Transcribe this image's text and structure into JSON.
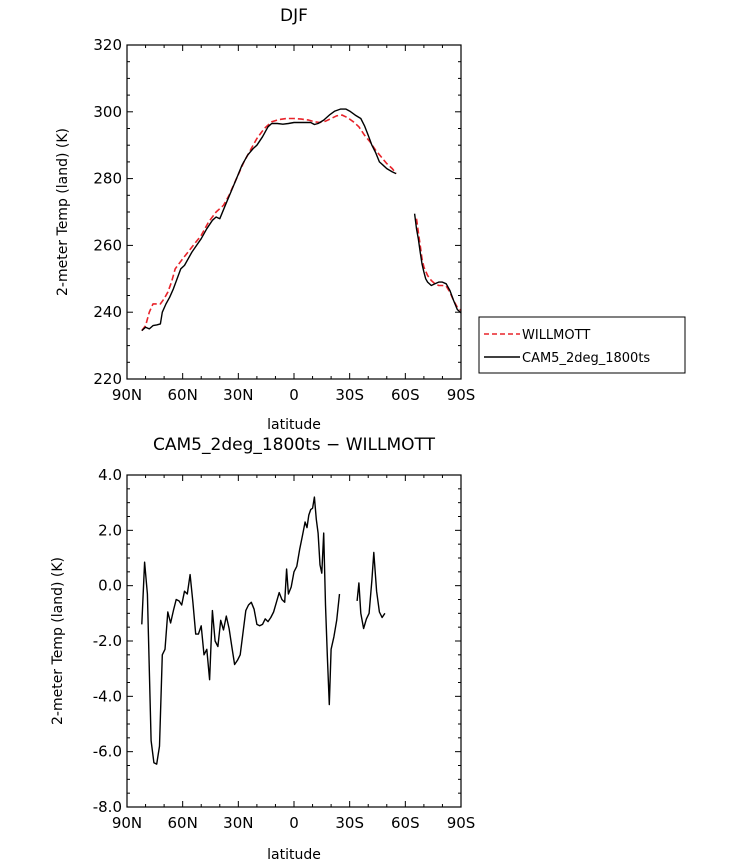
{
  "chart_data": [
    {
      "type": "line",
      "title": "DJF",
      "xlabel": "latitude",
      "ylabel": "2-meter Temp (land) (K)",
      "x_tick_labels": [
        "90N",
        "60N",
        "30N",
        "0",
        "30S",
        "60S",
        "90S"
      ],
      "x_ticks": [
        -90,
        -60,
        -30,
        0,
        30,
        60,
        90
      ],
      "xlim": [
        -90,
        90
      ],
      "y_tick_labels": [
        "220",
        "240",
        "260",
        "280",
        "300",
        "320"
      ],
      "y_ticks": [
        220,
        240,
        260,
        280,
        300,
        320
      ],
      "ylim": [
        220,
        320
      ],
      "legend": "right",
      "grid": false,
      "series": [
        {
          "name": "WILLMOTT",
          "color": "#e8232a",
          "dash": "dashed",
          "segments": [
            [
              [
                -82,
                234.5
              ],
              [
                -80,
                236
              ],
              [
                -78,
                240
              ],
              [
                -76,
                242.5
              ],
              [
                -74,
                242.5
              ],
              [
                -72,
                242.5
              ],
              [
                -70,
                244
              ],
              [
                -68,
                246
              ],
              [
                -66,
                249
              ],
              [
                -64,
                253
              ],
              [
                -60,
                256
              ],
              [
                -55,
                259.5
              ],
              [
                -50,
                263
              ],
              [
                -46,
                267
              ],
              [
                -42,
                270
              ],
              [
                -38,
                272
              ],
              [
                -35,
                275
              ],
              [
                -31,
                280
              ],
              [
                -27,
                285
              ],
              [
                -23,
                289
              ],
              [
                -20,
                292
              ],
              [
                -16,
                295
              ],
              [
                -12,
                297
              ],
              [
                -8,
                297.7
              ],
              [
                -4,
                298
              ],
              [
                0,
                298
              ],
              [
                4,
                297.8
              ],
              [
                8,
                297.5
              ],
              [
                11,
                297
              ],
              [
                14,
                296.8
              ],
              [
                17,
                297.2
              ],
              [
                20,
                298
              ],
              [
                23,
                298.8
              ],
              [
                26,
                299
              ],
              [
                29,
                298.2
              ],
              [
                32,
                297
              ],
              [
                35,
                295.5
              ],
              [
                38,
                293
              ],
              [
                41,
                291
              ],
              [
                44,
                288.5
              ],
              [
                47,
                286.5
              ],
              [
                50,
                284.5
              ],
              [
                53,
                283
              ],
              [
                55,
                281.5
              ]
            ],
            [
              [
                66,
                268
              ],
              [
                67,
                264
              ],
              [
                68,
                260
              ],
              [
                69,
                256
              ],
              [
                70,
                253.5
              ],
              [
                72,
                251
              ],
              [
                74,
                249.5
              ],
              [
                76,
                248.5
              ],
              [
                78,
                248
              ],
              [
                80,
                248
              ],
              [
                82,
                247.8
              ],
              [
                84,
                246
              ],
              [
                86,
                243.5
              ],
              [
                88,
                241.5
              ],
              [
                90,
                240.5
              ]
            ]
          ]
        },
        {
          "name": "CAM5_2deg_1800ts",
          "color": "#000000",
          "dash": "solid",
          "segments": [
            [
              [
                -82,
                234.5
              ],
              [
                -80,
                235.5
              ],
              [
                -78,
                235
              ],
              [
                -76,
                236
              ],
              [
                -74,
                236.2
              ],
              [
                -72,
                236.5
              ],
              [
                -71,
                240
              ],
              [
                -69,
                242.5
              ],
              [
                -67,
                244.5
              ],
              [
                -65,
                247
              ],
              [
                -63,
                250
              ],
              [
                -61,
                253
              ],
              [
                -59,
                254
              ],
              [
                -55,
                258
              ],
              [
                -50,
                262
              ],
              [
                -47,
                265
              ],
              [
                -44,
                267.5
              ],
              [
                -42,
                268.5
              ],
              [
                -40,
                268
              ],
              [
                -37,
                272
              ],
              [
                -34,
                276
              ],
              [
                -31,
                280
              ],
              [
                -28,
                284
              ],
              [
                -25,
                287
              ],
              [
                -22,
                289
              ],
              [
                -20,
                290
              ],
              [
                -17,
                292.5
              ],
              [
                -14,
                295.5
              ],
              [
                -12,
                296.5
              ],
              [
                -9,
                296.5
              ],
              [
                -6,
                296.3
              ],
              [
                -3,
                296.5
              ],
              [
                0,
                296.8
              ],
              [
                3,
                296.8
              ],
              [
                6,
                296.8
              ],
              [
                9,
                296.8
              ],
              [
                11,
                296.2
              ],
              [
                13,
                296.5
              ],
              [
                16,
                297.5
              ],
              [
                19,
                299
              ],
              [
                22,
                300.2
              ],
              [
                25,
                300.8
              ],
              [
                28,
                300.8
              ],
              [
                30,
                300.2
              ],
              [
                33,
                299
              ],
              [
                36,
                298
              ],
              [
                38,
                295.8
              ],
              [
                40,
                293
              ],
              [
                42,
                290
              ],
              [
                44,
                287.8
              ],
              [
                46,
                285
              ],
              [
                48,
                284
              ],
              [
                50,
                283
              ],
              [
                53,
                282
              ],
              [
                55,
                281.5
              ]
            ],
            [
              [
                65,
                269.5
              ],
              [
                66,
                265
              ],
              [
                67,
                262
              ],
              [
                68,
                258
              ],
              [
                69,
                254.5
              ],
              [
                70,
                252
              ],
              [
                71,
                250
              ],
              [
                72,
                249
              ],
              [
                74,
                248
              ],
              [
                76,
                248.5
              ],
              [
                78,
                249
              ],
              [
                80,
                249
              ],
              [
                82,
                248.5
              ],
              [
                84,
                246.5
              ],
              [
                86,
                243.5
              ],
              [
                88,
                240.8
              ],
              [
                90,
                239.8
              ]
            ]
          ]
        }
      ]
    },
    {
      "type": "line",
      "title": "CAM5_2deg_1800ts − WILLMOTT",
      "xlabel": "latitude",
      "ylabel": "2-meter Temp (land) (K)",
      "x_tick_labels": [
        "90N",
        "60N",
        "30N",
        "0",
        "30S",
        "60S",
        "90S"
      ],
      "x_ticks": [
        -90,
        -60,
        -30,
        0,
        30,
        60,
        90
      ],
      "xlim": [
        -90,
        90
      ],
      "y_tick_labels": [
        "-8.0",
        "-6.0",
        "-4.0",
        "-2.0",
        "0.0",
        "2.0",
        "4.0"
      ],
      "y_ticks": [
        -8,
        -6,
        -4,
        -2,
        0,
        2,
        4
      ],
      "ylim": [
        -8,
        4
      ],
      "grid": false,
      "series": [
        {
          "color": "#000000",
          "dash": "solid",
          "segments": [
            [
              [
                -82,
                -1.4
              ],
              [
                -80.5,
                0.85
              ],
              [
                -79,
                -0.3
              ],
              [
                -77,
                -5.6
              ],
              [
                -75.5,
                -6.4
              ],
              [
                -74,
                -6.45
              ],
              [
                -72.5,
                -5.8
              ],
              [
                -71,
                -2.5
              ],
              [
                -69.5,
                -2.3
              ],
              [
                -68,
                -0.95
              ],
              [
                -66.5,
                -1.35
              ],
              [
                -65,
                -0.9
              ],
              [
                -63.5,
                -0.5
              ],
              [
                -62,
                -0.55
              ],
              [
                -60.5,
                -0.7
              ],
              [
                -59,
                -0.2
              ],
              [
                -57.5,
                -0.3
              ],
              [
                -56,
                0.4
              ],
              [
                -54.5,
                -0.6
              ],
              [
                -53,
                -1.75
              ],
              [
                -51.5,
                -1.75
              ],
              [
                -50,
                -1.45
              ],
              [
                -48.5,
                -2.5
              ],
              [
                -47,
                -2.3
              ],
              [
                -45.5,
                -3.4
              ],
              [
                -44,
                -0.9
              ],
              [
                -42.5,
                -2.0
              ],
              [
                -41,
                -2.2
              ],
              [
                -39.5,
                -1.25
              ],
              [
                -38,
                -1.6
              ],
              [
                -36.5,
                -1.1
              ],
              [
                -35,
                -1.55
              ],
              [
                -33.5,
                -2.2
              ],
              [
                -32,
                -2.85
              ],
              [
                -30.5,
                -2.7
              ],
              [
                -29,
                -2.5
              ],
              [
                -27.5,
                -1.7
              ],
              [
                -26,
                -0.9
              ],
              [
                -24.5,
                -0.7
              ],
              [
                -23,
                -0.6
              ],
              [
                -21.5,
                -0.85
              ],
              [
                -20,
                -1.4
              ],
              [
                -18.5,
                -1.45
              ],
              [
                -17,
                -1.4
              ],
              [
                -15.5,
                -1.2
              ],
              [
                -14,
                -1.3
              ],
              [
                -12.5,
                -1.15
              ],
              [
                -11,
                -0.95
              ],
              [
                -9.5,
                -0.6
              ],
              [
                -8,
                -0.25
              ],
              [
                -6.5,
                -0.5
              ],
              [
                -5,
                -0.6
              ],
              [
                -4,
                0.6
              ],
              [
                -3,
                -0.3
              ],
              [
                -1.5,
                -0.05
              ],
              [
                0,
                0.5
              ],
              [
                1.5,
                0.7
              ],
              [
                3,
                1.3
              ],
              [
                4.5,
                1.8
              ],
              [
                6,
                2.3
              ],
              [
                7,
                2.1
              ],
              [
                8,
                2.55
              ],
              [
                9,
                2.75
              ],
              [
                10,
                2.8
              ],
              [
                11,
                3.2
              ],
              [
                12,
                2.4
              ],
              [
                13,
                1.9
              ],
              [
                14,
                0.75
              ],
              [
                15,
                0.45
              ],
              [
                16,
                1.9
              ],
              [
                17,
                -0.7
              ],
              [
                18,
                -2.6
              ],
              [
                19,
                -4.3
              ],
              [
                20,
                -2.3
              ],
              [
                21.5,
                -1.85
              ],
              [
                23,
                -1.25
              ],
              [
                24.5,
                -0.3
              ]
            ],
            [
              [
                34,
                -0.55
              ],
              [
                35,
                0.1
              ],
              [
                36,
                -1.0
              ],
              [
                37.5,
                -1.55
              ],
              [
                39,
                -1.2
              ],
              [
                40.5,
                -1.0
              ],
              [
                42,
                0.2
              ],
              [
                43,
                1.2
              ],
              [
                44.5,
                -0.2
              ],
              [
                46,
                -0.95
              ],
              [
                47.5,
                -1.15
              ],
              [
                49,
                -1.0
              ]
            ]
          ]
        }
      ]
    }
  ]
}
